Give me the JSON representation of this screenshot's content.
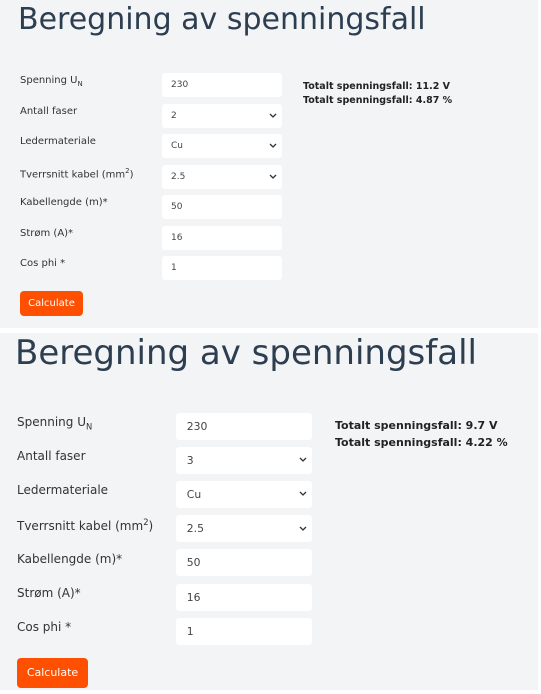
{
  "panels": [
    {
      "title": "Beregning av spenningsfall",
      "fields": [
        {
          "label": "Spenning U",
          "sub": "N",
          "value": "230",
          "kind": "input"
        },
        {
          "label": "Antall faser",
          "value": "2",
          "kind": "select"
        },
        {
          "label": "Ledermateriale",
          "value": "Cu",
          "kind": "select"
        },
        {
          "label": "Tverrsnitt kabel (mm",
          "sup": "2",
          "label_end": ")",
          "value": "2.5",
          "kind": "select"
        },
        {
          "label": "Kabellengde (m)*",
          "value": "50",
          "kind": "input"
        },
        {
          "label": "Strøm (A)*",
          "value": "16",
          "kind": "input"
        },
        {
          "label": "Cos phi *",
          "value": "1",
          "kind": "input"
        }
      ],
      "button": "Calculate",
      "results": [
        "Totalt spenningsfall: 11.2 V",
        "Totalt spenningsfall: 4.87 %"
      ]
    },
    {
      "title": "Beregning av spenningsfall",
      "fields": [
        {
          "label": "Spenning U",
          "sub": "N",
          "value": "230",
          "kind": "input"
        },
        {
          "label": "Antall faser",
          "value": "3",
          "kind": "select"
        },
        {
          "label": "Ledermateriale",
          "value": "Cu",
          "kind": "select"
        },
        {
          "label": "Tverrsnitt kabel (mm",
          "sup": "2",
          "label_end": ")",
          "value": "2.5",
          "kind": "select"
        },
        {
          "label": "Kabellengde (m)*",
          "value": "50",
          "kind": "input"
        },
        {
          "label": "Strøm (A)*",
          "value": "16",
          "kind": "input"
        },
        {
          "label": "Cos phi *",
          "value": "1",
          "kind": "input"
        }
      ],
      "button": "Calculate",
      "results": [
        "Totalt spenningsfall: 9.7 V",
        "Totalt spenningsfall: 4.22 %"
      ]
    }
  ]
}
